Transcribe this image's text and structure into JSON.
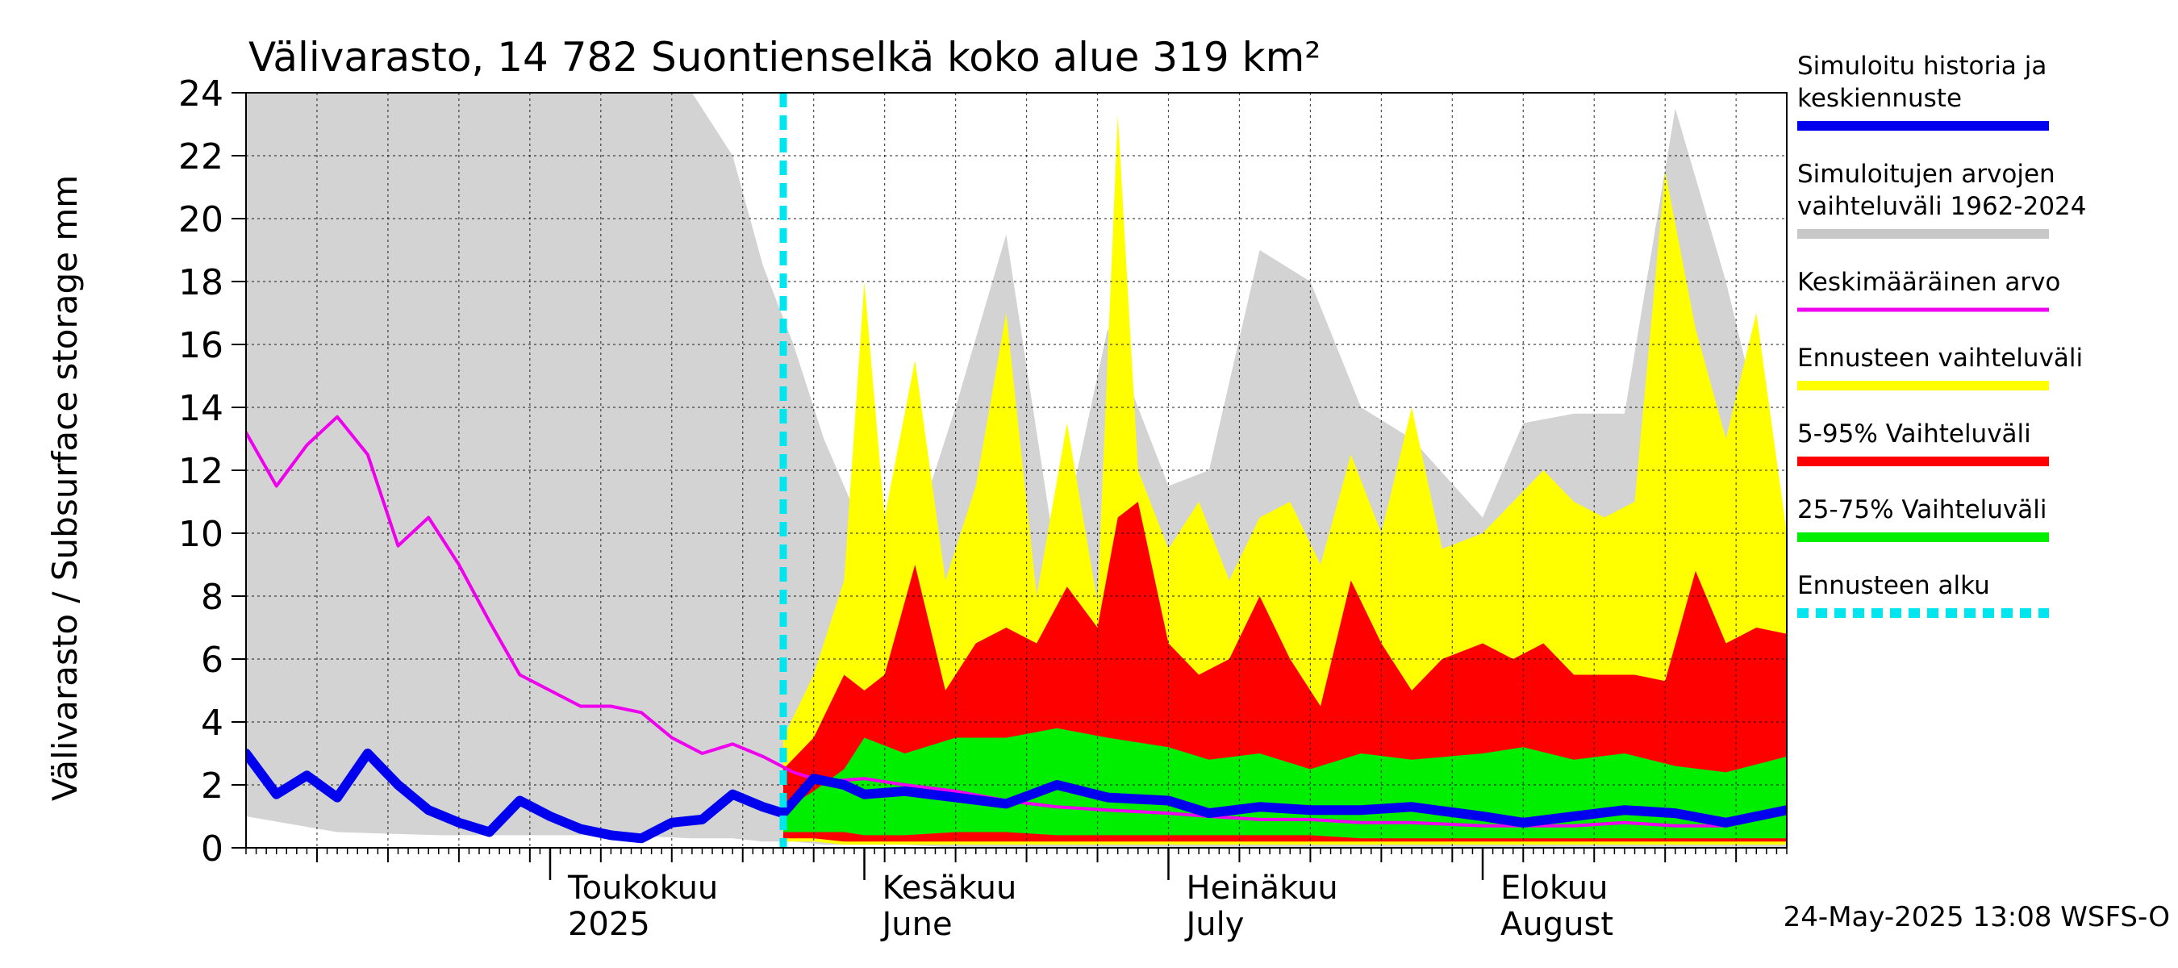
{
  "chart_data": {
    "type": "area",
    "title": "Välivarasto, 14 782 Suontienselkä koko alue 319 km²",
    "ylabel": "Välivarasto / Subsurface storage  mm",
    "ylim": [
      0,
      24
    ],
    "yticks": [
      0,
      2,
      4,
      6,
      8,
      10,
      12,
      14,
      16,
      18,
      20,
      22,
      24
    ],
    "grid": true,
    "legend_position": "right",
    "x_range": [
      "2025-04-01",
      "2025-08-31"
    ],
    "forecast_start": "2025-05-24",
    "month_labels": [
      {
        "date": "2025-05-01",
        "line1": "Toukokuu",
        "line2": "2025"
      },
      {
        "date": "2025-06-01",
        "line1": "Kesäkuu",
        "line2": "June"
      },
      {
        "date": "2025-07-01",
        "line1": "Heinäkuu",
        "line2": "July"
      },
      {
        "date": "2025-08-01",
        "line1": "Elokuu",
        "line2": "August"
      }
    ],
    "footer": "24-May-2025 13:08 WSFS-O",
    "legend": [
      {
        "label": "Simuloitu historia ja keskiennuste",
        "color": "#0000ee"
      },
      {
        "label": "Simuloitujen arvojen vaihteluväli 1962-2024",
        "color": "#c8c8c8"
      },
      {
        "label": "Keskimääräinen arvo",
        "color": "#ee00ee"
      },
      {
        "label": "Ennusteen vaihteluväli",
        "color": "#ffff00"
      },
      {
        "label": "5-95% Vaihteluväli",
        "color": "#ff0000"
      },
      {
        "label": "25-75% Vaihteluväli",
        "color": "#00ee00"
      },
      {
        "label": "Ennusteen alku",
        "color": "#00e5ee"
      }
    ],
    "series": [
      {
        "name": "Simuloitujen arvojen vaihteluväli 1962-2024",
        "kind": "band",
        "color": "#d3d3d3",
        "x": [
          "2025-04-01",
          "2025-04-10",
          "2025-04-20",
          "2025-05-01",
          "2025-05-08",
          "2025-05-15",
          "2025-05-19",
          "2025-05-22",
          "2025-05-25",
          "2025-05-28",
          "2025-06-01",
          "2025-06-05",
          "2025-06-10",
          "2025-06-15",
          "2025-06-20",
          "2025-06-25",
          "2025-07-01",
          "2025-07-05",
          "2025-07-10",
          "2025-07-15",
          "2025-07-20",
          "2025-07-25",
          "2025-08-01",
          "2025-08-05",
          "2025-08-10",
          "2025-08-15",
          "2025-08-20",
          "2025-08-25",
          "2025-08-31"
        ],
        "low": [
          1.0,
          0.5,
          0.4,
          0.4,
          0.4,
          0.3,
          0.3,
          0.2,
          0.2,
          0.1,
          0.1,
          0.1,
          0.0,
          0.0,
          0.0,
          0.0,
          0.0,
          0.0,
          0.0,
          0.0,
          0.0,
          0.0,
          0.0,
          0.0,
          0.0,
          0.0,
          0.0,
          0.0,
          0.0
        ],
        "high": [
          24.0,
          24.0,
          24.0,
          24.0,
          24.0,
          24.0,
          22.0,
          18.5,
          16.0,
          13.0,
          10.0,
          9.0,
          14.0,
          19.5,
          9.0,
          16.5,
          11.5,
          12.0,
          19.0,
          18.0,
          14.0,
          13.0,
          10.5,
          13.5,
          13.8,
          13.8,
          23.5,
          18.0,
          10.0
        ]
      },
      {
        "name": "Ennusteen vaihteluväli",
        "kind": "band",
        "color": "#ffff00",
        "x": [
          "2025-05-24",
          "2025-05-27",
          "2025-05-30",
          "2025-06-01",
          "2025-06-03",
          "2025-06-06",
          "2025-06-09",
          "2025-06-12",
          "2025-06-15",
          "2025-06-18",
          "2025-06-21",
          "2025-06-24",
          "2025-06-26",
          "2025-06-28",
          "2025-07-01",
          "2025-07-04",
          "2025-07-07",
          "2025-07-10",
          "2025-07-13",
          "2025-07-16",
          "2025-07-19",
          "2025-07-22",
          "2025-07-25",
          "2025-07-28",
          "2025-08-01",
          "2025-08-04",
          "2025-08-07",
          "2025-08-10",
          "2025-08-13",
          "2025-08-16",
          "2025-08-19",
          "2025-08-22",
          "2025-08-25",
          "2025-08-28",
          "2025-08-31"
        ],
        "low": [
          0.2,
          0.2,
          0.1,
          0.1,
          0.1,
          0.1,
          0.1,
          0.1,
          0.1,
          0.1,
          0.1,
          0.1,
          0.1,
          0.1,
          0.1,
          0.1,
          0.1,
          0.1,
          0.1,
          0.1,
          0.1,
          0.1,
          0.1,
          0.1,
          0.1,
          0.1,
          0.1,
          0.1,
          0.1,
          0.1,
          0.1,
          0.1,
          0.1,
          0.1,
          0.1
        ],
        "high": [
          3.5,
          5.5,
          8.5,
          18.0,
          10.5,
          15.5,
          8.5,
          11.5,
          17.0,
          8.0,
          13.5,
          7.8,
          23.3,
          12.0,
          9.5,
          11.0,
          8.5,
          10.5,
          11.0,
          9.0,
          12.5,
          10.0,
          14.0,
          9.5,
          10.0,
          11.0,
          12.0,
          11.0,
          10.5,
          11.0,
          21.5,
          16.5,
          13.0,
          17.0,
          10.0
        ]
      },
      {
        "name": "5-95% Vaihteluväli",
        "kind": "band",
        "color": "#ff0000",
        "x": [
          "2025-05-24",
          "2025-05-27",
          "2025-05-30",
          "2025-06-01",
          "2025-06-03",
          "2025-06-06",
          "2025-06-09",
          "2025-06-12",
          "2025-06-15",
          "2025-06-18",
          "2025-06-21",
          "2025-06-24",
          "2025-06-26",
          "2025-06-28",
          "2025-07-01",
          "2025-07-04",
          "2025-07-07",
          "2025-07-10",
          "2025-07-13",
          "2025-07-16",
          "2025-07-19",
          "2025-07-22",
          "2025-07-25",
          "2025-07-28",
          "2025-08-01",
          "2025-08-04",
          "2025-08-07",
          "2025-08-10",
          "2025-08-13",
          "2025-08-16",
          "2025-08-19",
          "2025-08-22",
          "2025-08-25",
          "2025-08-28",
          "2025-08-31"
        ],
        "low": [
          0.3,
          0.3,
          0.2,
          0.2,
          0.2,
          0.2,
          0.2,
          0.2,
          0.2,
          0.2,
          0.2,
          0.2,
          0.2,
          0.2,
          0.2,
          0.2,
          0.2,
          0.2,
          0.2,
          0.2,
          0.2,
          0.2,
          0.2,
          0.2,
          0.2,
          0.2,
          0.2,
          0.2,
          0.2,
          0.2,
          0.2,
          0.2,
          0.2,
          0.2,
          0.2
        ],
        "high": [
          2.5,
          3.5,
          5.5,
          5.0,
          5.5,
          9.0,
          5.0,
          6.5,
          7.0,
          6.5,
          8.3,
          7.0,
          10.5,
          11.0,
          6.5,
          5.5,
          6.0,
          8.0,
          6.0,
          4.5,
          8.5,
          6.5,
          5.0,
          6.0,
          6.5,
          6.0,
          6.5,
          5.5,
          5.5,
          5.5,
          5.3,
          8.8,
          6.5,
          7.0,
          6.8
        ]
      },
      {
        "name": "25-75% Vaihteluväli",
        "kind": "band",
        "color": "#00ee00",
        "x": [
          "2025-05-24",
          "2025-05-27",
          "2025-05-30",
          "2025-06-01",
          "2025-06-05",
          "2025-06-10",
          "2025-06-15",
          "2025-06-20",
          "2025-06-25",
          "2025-07-01",
          "2025-07-05",
          "2025-07-10",
          "2025-07-15",
          "2025-07-20",
          "2025-07-25",
          "2025-08-01",
          "2025-08-05",
          "2025-08-10",
          "2025-08-15",
          "2025-08-20",
          "2025-08-25",
          "2025-08-31"
        ],
        "low": [
          0.5,
          0.5,
          0.5,
          0.4,
          0.4,
          0.5,
          0.5,
          0.4,
          0.4,
          0.4,
          0.4,
          0.4,
          0.4,
          0.3,
          0.3,
          0.3,
          0.3,
          0.3,
          0.3,
          0.3,
          0.3,
          0.3
        ],
        "high": [
          1.2,
          1.8,
          2.5,
          3.5,
          3.0,
          3.5,
          3.5,
          3.8,
          3.5,
          3.2,
          2.8,
          3.0,
          2.5,
          3.0,
          2.8,
          3.0,
          3.2,
          2.8,
          3.0,
          2.6,
          2.4,
          2.9
        ]
      },
      {
        "name": "Keskimääräinen arvo",
        "kind": "line",
        "color": "#ee00ee",
        "x": [
          "2025-04-01",
          "2025-04-04",
          "2025-04-07",
          "2025-04-10",
          "2025-04-13",
          "2025-04-16",
          "2025-04-19",
          "2025-04-22",
          "2025-04-25",
          "2025-04-28",
          "2025-05-01",
          "2025-05-04",
          "2025-05-07",
          "2025-05-10",
          "2025-05-13",
          "2025-05-16",
          "2025-05-19",
          "2025-05-22",
          "2025-05-25",
          "2025-05-28",
          "2025-06-01",
          "2025-06-05",
          "2025-06-10",
          "2025-06-15",
          "2025-06-20",
          "2025-06-25",
          "2025-07-01",
          "2025-07-05",
          "2025-07-10",
          "2025-07-15",
          "2025-07-20",
          "2025-07-25",
          "2025-08-01",
          "2025-08-05",
          "2025-08-10",
          "2025-08-15",
          "2025-08-20",
          "2025-08-25",
          "2025-08-31"
        ],
        "values": [
          13.2,
          11.5,
          12.8,
          13.7,
          12.5,
          9.6,
          10.5,
          9.0,
          7.2,
          5.5,
          5.0,
          4.5,
          4.5,
          4.3,
          3.5,
          3.0,
          3.3,
          2.9,
          2.4,
          2.1,
          2.2,
          2.0,
          1.8,
          1.5,
          1.3,
          1.2,
          1.1,
          1.0,
          0.9,
          0.9,
          0.8,
          0.8,
          0.7,
          0.7,
          0.7,
          0.8,
          0.7,
          0.7,
          1.2
        ]
      },
      {
        "name": "Simuloitu historia ja keskiennuste",
        "kind": "line",
        "color": "#0000ee",
        "x": [
          "2025-04-01",
          "2025-04-04",
          "2025-04-07",
          "2025-04-10",
          "2025-04-13",
          "2025-04-16",
          "2025-04-19",
          "2025-04-22",
          "2025-04-25",
          "2025-04-28",
          "2025-05-01",
          "2025-05-04",
          "2025-05-07",
          "2025-05-10",
          "2025-05-13",
          "2025-05-16",
          "2025-05-19",
          "2025-05-22",
          "2025-05-24",
          "2025-05-27",
          "2025-05-30",
          "2025-06-01",
          "2025-06-05",
          "2025-06-10",
          "2025-06-15",
          "2025-06-20",
          "2025-06-25",
          "2025-07-01",
          "2025-07-05",
          "2025-07-10",
          "2025-07-15",
          "2025-07-20",
          "2025-07-25",
          "2025-08-01",
          "2025-08-05",
          "2025-08-10",
          "2025-08-15",
          "2025-08-20",
          "2025-08-25",
          "2025-08-31"
        ],
        "values": [
          3.0,
          1.7,
          2.3,
          1.6,
          3.0,
          2.0,
          1.2,
          0.8,
          0.5,
          1.5,
          1.0,
          0.6,
          0.4,
          0.3,
          0.8,
          0.9,
          1.7,
          1.3,
          1.1,
          2.2,
          2.0,
          1.7,
          1.8,
          1.6,
          1.4,
          2.0,
          1.6,
          1.5,
          1.1,
          1.3,
          1.2,
          1.2,
          1.3,
          1.0,
          0.8,
          1.0,
          1.2,
          1.1,
          0.8,
          1.2
        ]
      }
    ]
  }
}
